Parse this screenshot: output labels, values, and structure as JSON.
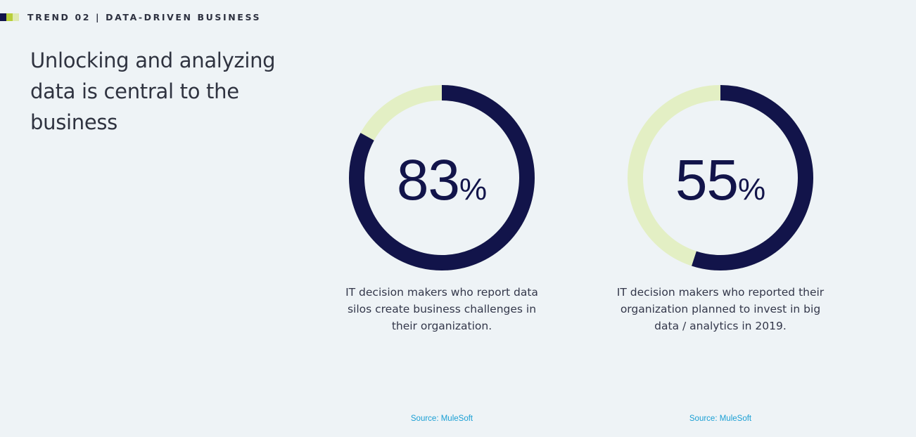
{
  "header": {
    "label": "TREND 02 | DATA-DRIVEN BUSINESS",
    "swatch_colors": [
      "#12144a",
      "#b8cf3a",
      "#dfeab0"
    ]
  },
  "headline": {
    "line1": "Unlocking and analyzing",
    "line2": "data is central to the business"
  },
  "colors": {
    "filled": "#12144a",
    "remaining": "#e3efc4",
    "source": "#1a9fd4"
  },
  "chart_data": [
    {
      "type": "pie",
      "variant": "donut",
      "value_percent": 83,
      "value_label": "83",
      "unit_label": "%",
      "caption_lines": [
        "IT decision makers who report data",
        "silos create business challenges in",
        "their organization."
      ],
      "source": "Source: MuleSoft"
    },
    {
      "type": "pie",
      "variant": "donut",
      "value_percent": 55,
      "value_label": "55",
      "unit_label": "%",
      "caption_lines": [
        "IT decision makers who reported their",
        "organization planned to invest in big",
        "data / analytics in 2019."
      ],
      "source": "Source: MuleSoft"
    }
  ]
}
